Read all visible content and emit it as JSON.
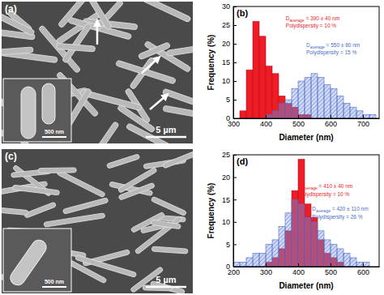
{
  "images": [
    {
      "label": "(a)",
      "scale_bar": "5 µm",
      "inset_scale_bar": "500 nm"
    },
    {
      "label": "(c)",
      "scale_bar": "5 µm",
      "inset_scale_bar": "500 nm"
    }
  ],
  "chart_data": [
    {
      "type": "histogram",
      "title": "(b)",
      "x_label": "Diameter (nm)",
      "y_label": "Frequency (%)",
      "xlim": [
        300,
        750
      ],
      "xticks": [
        300,
        400,
        500,
        600,
        700
      ],
      "ylim": [
        0,
        30
      ],
      "yticks": [
        0,
        5,
        10,
        15,
        20,
        25,
        30
      ],
      "grid": false,
      "bins": [
        300,
        320,
        340,
        360,
        380,
        400,
        420,
        440,
        460,
        480,
        500,
        520,
        540,
        560,
        580,
        600,
        620,
        640,
        660,
        680,
        700,
        720,
        740
      ],
      "series": [
        {
          "color": "#ee1c25",
          "values": [
            0,
            2,
            13,
            26,
            22,
            14,
            12,
            6,
            4,
            3,
            1,
            1,
            0,
            0,
            0,
            0,
            0,
            0,
            0,
            0,
            0,
            0
          ],
          "annotations": [
            {
              "parts": [
                "D",
                "average",
                " = 390 ± 40 nm"
              ]
            },
            {
              "parts": [
                "Polydispersity = 10 %"
              ]
            }
          ]
        },
        {
          "color": "#4a6cc8",
          "values": [
            0,
            0,
            0,
            0,
            0,
            1,
            2,
            4,
            5,
            8,
            10,
            11,
            12,
            11,
            9,
            8,
            6,
            4,
            3,
            2,
            1,
            1
          ],
          "annotations": [
            {
              "parts": [
                "D",
                "average",
                " = 550 ± 80 nm"
              ]
            },
            {
              "parts": [
                "Polydispersity = 15 %"
              ]
            }
          ]
        }
      ]
    },
    {
      "type": "histogram",
      "title": "(d)",
      "x_label": "Diameter (nm)",
      "y_label": "Frequency (%)",
      "xlim": [
        200,
        650
      ],
      "xticks": [
        200,
        300,
        400,
        500,
        600
      ],
      "ylim": [
        0,
        25
      ],
      "yticks": [
        0,
        5,
        10,
        15,
        20,
        25
      ],
      "grid": false,
      "bins": [
        200,
        220,
        240,
        260,
        280,
        300,
        320,
        340,
        360,
        380,
        400,
        420,
        440,
        460,
        480,
        500,
        520,
        540,
        560,
        580,
        600,
        620,
        640
      ],
      "series": [
        {
          "color": "#ee1c25",
          "values": [
            0,
            0,
            0,
            0,
            0,
            1,
            2,
            4,
            8,
            17,
            24,
            14,
            11,
            6,
            3,
            2,
            1,
            0,
            0,
            0,
            0,
            0
          ],
          "annotations": [
            {
              "parts": [
                "D",
                "average",
                " = 410 ± 40 nm"
              ]
            },
            {
              "parts": [
                "Polydispersity = 10 %"
              ]
            }
          ]
        },
        {
          "color": "#4a6cc8",
          "values": [
            1,
            1,
            2,
            3,
            3,
            5,
            6,
            9,
            12,
            15,
            14,
            11,
            10,
            8,
            6,
            5,
            4,
            3,
            2,
            1,
            1,
            0
          ],
          "annotations": [
            {
              "parts": [
                "D",
                "average",
                " = 420 ± 110 nm"
              ]
            },
            {
              "parts": [
                "Polydispersity = 26 %"
              ]
            }
          ]
        }
      ]
    }
  ]
}
